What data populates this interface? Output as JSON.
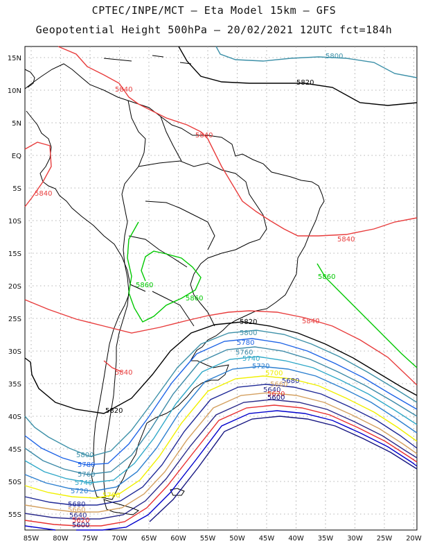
{
  "title_line1": "CPTEC/INPE/MCT –  Eta Model 15km – GFS",
  "title_line2": "Geopotential Height 500hPa – 20/02/2021 12UTC fct=184h",
  "lon_ticks": [
    "85W",
    "80W",
    "75W",
    "70W",
    "65W",
    "60W",
    "55W",
    "50W",
    "45W",
    "40W",
    "35W",
    "30W",
    "25W",
    "20W"
  ],
  "lat_ticks": [
    "15N",
    "10N",
    "5N",
    "EQ",
    "5S",
    "10S",
    "15S",
    "20S",
    "25S",
    "30S",
    "35S",
    "40S",
    "45S",
    "50S",
    "55S"
  ],
  "colors": {
    "c5580": "#141480",
    "c5600": "#0000cc",
    "c5620": "#e83030",
    "c5640": "#2a2a8a",
    "c5660": "#d4a060",
    "c5680": "#1e2896",
    "c5700": "#f0f000",
    "c5720": "#2c7fd0",
    "c5740": "#30a8c8",
    "c5760": "#3c8aa8",
    "c5780": "#1e64e6",
    "c5800": "#3c90a8",
    "c5820": "#000000",
    "c5840": "#e83c3c",
    "c5860": "#00c800"
  },
  "contour_labels": {
    "l5800_n": "5800",
    "l5820_n": "5820",
    "l5840_a": "5840",
    "l5840_b": "5840",
    "l5840_c": "5840",
    "l5840_d": "5840",
    "l5840_e": "5840",
    "l5840_f": "5840",
    "l5860_a": "5860",
    "l5860_b": "5860",
    "l5860_c": "5860",
    "l5820_s": "5820",
    "l5800_s": "5800",
    "l5780_s": "5780",
    "l5760_s": "5760",
    "l5740_s": "5740",
    "l5720_s": "5720",
    "l5700_s": "5700",
    "l5680_s": "5680",
    "l5660_s": "5660",
    "l5640_s": "5640",
    "l5620_s": "5620",
    "l5600_s": "5600",
    "l5820_w": "5820",
    "l5800_w": "5800",
    "l5780_w": "5780",
    "l5760_w": "5760",
    "l5740_w": "5740",
    "l5720_w": "5720",
    "l5700_w": "5700",
    "l5680_w": "5680",
    "l5660_w": "5660",
    "l5640_w": "5640",
    "l5620_w": "5620",
    "l5600_w": "5600"
  }
}
